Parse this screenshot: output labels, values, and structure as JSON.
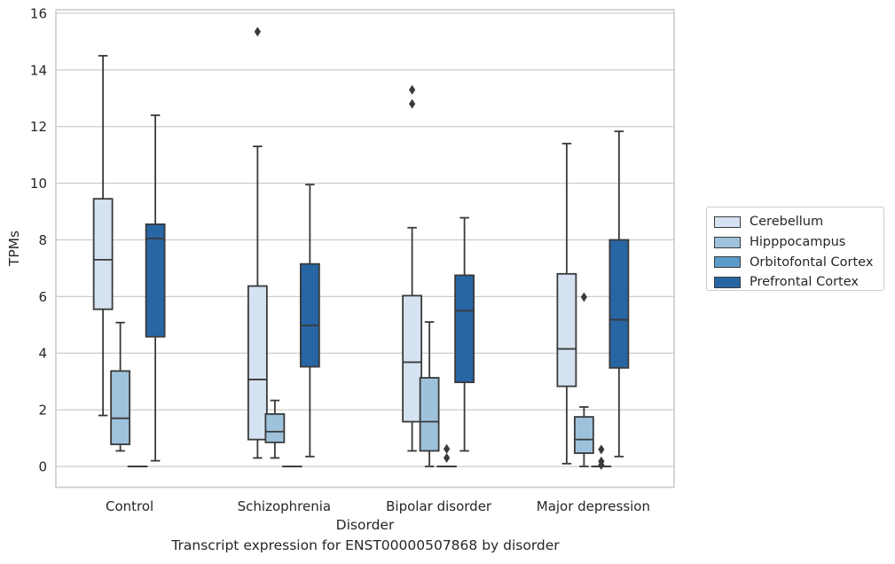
{
  "colors": {
    "Cerebellum": "#d5e2f1",
    "Hipppocampus": "#9ec2db",
    "Orbitofontal Cortex": "#5b9bc9",
    "Prefrontal Cortex": "#2865a3",
    "edge": "#3a3a3a",
    "grid": "#cccccc"
  },
  "caption": "Transcript expression for ENST00000507868 by disorder",
  "chart_data": {
    "type": "box",
    "xlabel": "Disorder",
    "ylabel": "TPMs",
    "ylim": [
      -0.7,
      16.2
    ],
    "yticks": [
      0,
      2,
      4,
      6,
      8,
      10,
      12,
      14,
      16
    ],
    "grid": true,
    "legend_position": "right, outside plot",
    "categories": [
      "Control",
      "Schizophrenia",
      "Bipolar disorder",
      "Major depression"
    ],
    "series": [
      {
        "name": "Cerebellum",
        "boxes": [
          {
            "whislo": 1.8,
            "q1": 5.55,
            "med": 7.3,
            "q3": 9.45,
            "whishi": 14.5,
            "fliers": []
          },
          {
            "whislo": 0.3,
            "q1": 0.95,
            "med": 3.07,
            "q3": 6.37,
            "whishi": 11.3,
            "fliers": [
              15.35
            ]
          },
          {
            "whislo": 0.55,
            "q1": 1.58,
            "med": 3.68,
            "q3": 6.03,
            "whishi": 8.43,
            "fliers": [
              12.8,
              13.3
            ]
          },
          {
            "whislo": 0.1,
            "q1": 2.83,
            "med": 4.15,
            "q3": 6.8,
            "whishi": 11.4,
            "fliers": []
          }
        ]
      },
      {
        "name": "Hipppocampus",
        "boxes": [
          {
            "whislo": 0.55,
            "q1": 0.78,
            "med": 1.7,
            "q3": 3.37,
            "whishi": 5.08,
            "fliers": []
          },
          {
            "whislo": 0.3,
            "q1": 0.85,
            "med": 1.23,
            "q3": 1.85,
            "whishi": 2.33,
            "fliers": []
          },
          {
            "whislo": 0.0,
            "q1": 0.55,
            "med": 1.58,
            "q3": 3.13,
            "whishi": 5.1,
            "fliers": []
          },
          {
            "whislo": 0.0,
            "q1": 0.47,
            "med": 0.95,
            "q3": 1.75,
            "whishi": 2.1,
            "fliers": [
              5.98
            ]
          }
        ]
      },
      {
        "name": "Orbitofontal Cortex",
        "boxes": [
          {
            "whislo": 0.0,
            "q1": 0.0,
            "med": 0.0,
            "q3": 0.0,
            "whishi": 0.0,
            "fliers": []
          },
          {
            "whislo": 0.0,
            "q1": 0.0,
            "med": 0.0,
            "q3": 0.0,
            "whishi": 0.0,
            "fliers": []
          },
          {
            "whislo": 0.0,
            "q1": 0.0,
            "med": 0.0,
            "q3": 0.0,
            "whishi": 0.0,
            "fliers": [
              0.3,
              0.62
            ]
          },
          {
            "whislo": 0.0,
            "q1": 0.0,
            "med": 0.0,
            "q3": 0.0,
            "whishi": 0.0,
            "fliers": [
              0.05,
              0.18,
              0.6
            ]
          }
        ]
      },
      {
        "name": "Prefrontal Cortex",
        "boxes": [
          {
            "whislo": 0.2,
            "q1": 4.58,
            "med": 8.05,
            "q3": 8.55,
            "whishi": 12.4,
            "fliers": []
          },
          {
            "whislo": 0.35,
            "q1": 3.52,
            "med": 4.98,
            "q3": 7.15,
            "whishi": 9.95,
            "fliers": []
          },
          {
            "whislo": 0.55,
            "q1": 2.97,
            "med": 5.5,
            "q3": 6.75,
            "whishi": 8.78,
            "fliers": []
          },
          {
            "whislo": 0.35,
            "q1": 3.48,
            "med": 5.18,
            "q3": 8.0,
            "whishi": 11.83,
            "fliers": []
          }
        ]
      }
    ]
  }
}
